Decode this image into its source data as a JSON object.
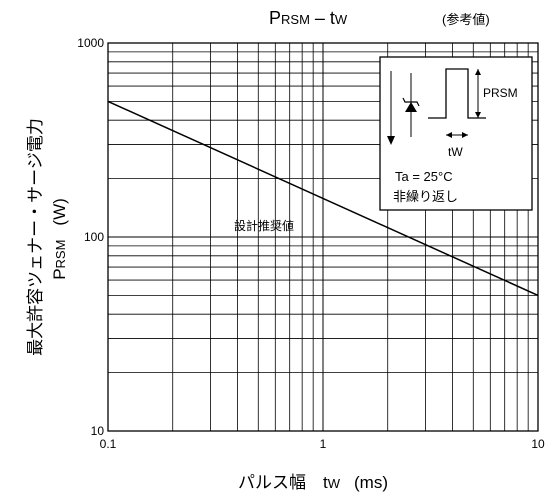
{
  "chart_data": {
    "type": "line",
    "x_scale": "log",
    "y_scale": "log",
    "xlim": [
      0.1,
      10
    ],
    "ylim": [
      10,
      1000
    ],
    "x_ticks": [
      "0.1",
      "1",
      "10"
    ],
    "y_ticks": [
      "10",
      "100",
      "1000"
    ],
    "title": {
      "p": "P",
      "p_sub": "RSM",
      "mid": " – t",
      "w_sub": "W",
      "ref": "(参考値)"
    },
    "xlabel": {
      "prefix": "パルス幅　t",
      "sub": "W",
      "unit": "(ms)"
    },
    "ylabel": {
      "line1": "最大許容ツェナー・サージ電力",
      "line2_p": "P",
      "line2_sub": "RSM",
      "line2_unit": "(W)"
    },
    "series": [
      {
        "name": "設計推奨値",
        "x": [
          0.1,
          10
        ],
        "y": [
          500,
          50
        ]
      }
    ],
    "grid": true,
    "inset": {
      "prsm_label": "PRSM",
      "tw_label": "tW",
      "temp_label": "Ta = 25°C",
      "note_label": "非繰り返し"
    }
  }
}
